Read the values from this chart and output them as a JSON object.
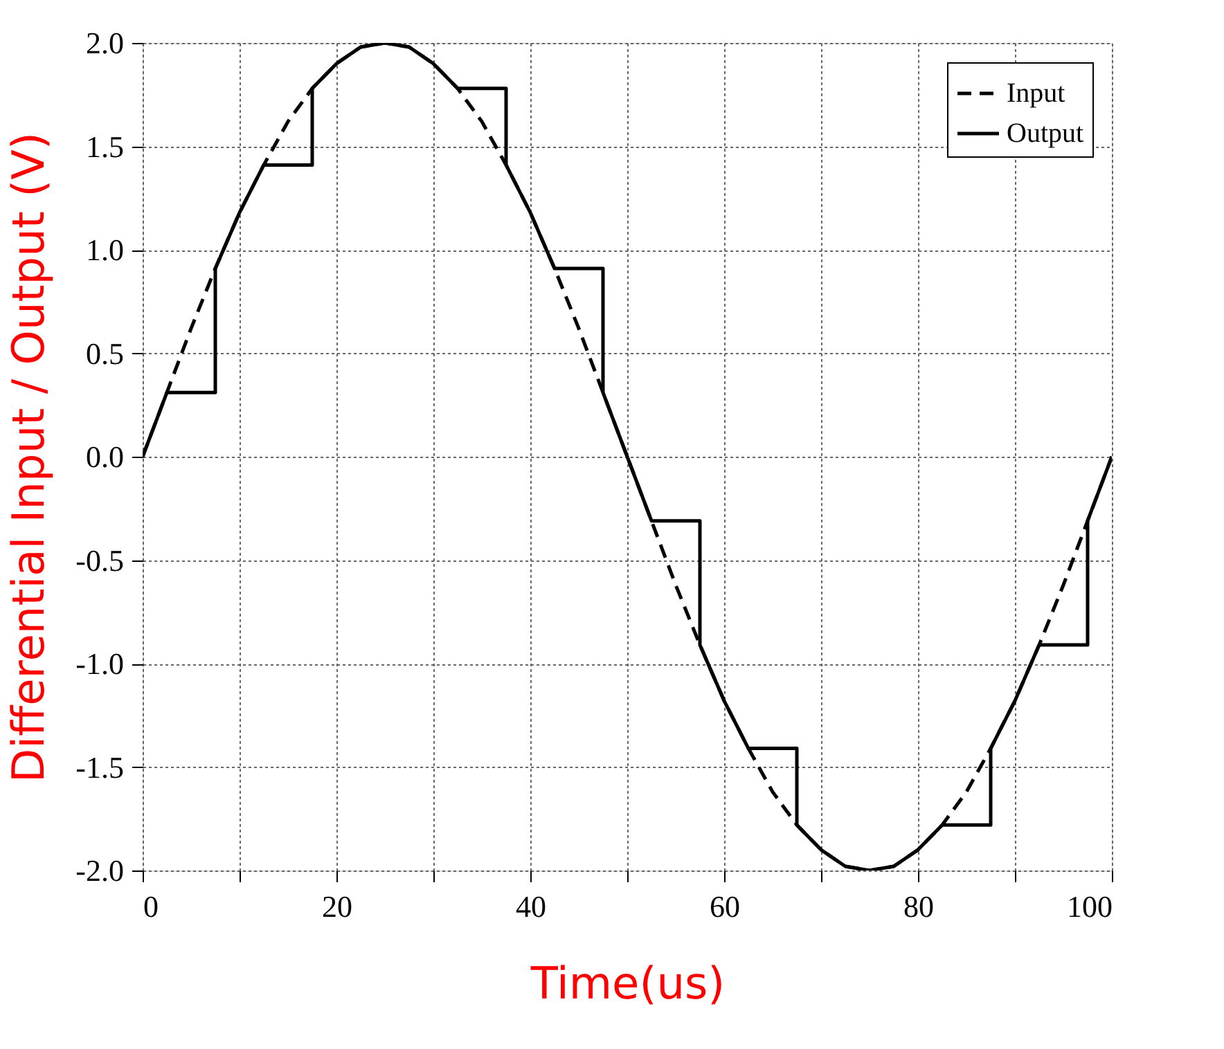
{
  "chart_data": {
    "type": "line",
    "xlabel": "Time(us)",
    "ylabel": "Differential Input / Output (V)",
    "xlim": [
      0,
      100
    ],
    "ylim": [
      -2.0,
      2.0
    ],
    "xticks": [
      0,
      {
        "value": 10,
        "label": null
      },
      20,
      {
        "value": 30,
        "label": null
      },
      40,
      {
        "value": 50,
        "label": null
      },
      60,
      {
        "value": 70,
        "label": null
      },
      80,
      {
        "value": 90,
        "label": null
      },
      100
    ],
    "yticks": [
      {
        "value": -2,
        "label": "-2.0"
      },
      -1.5,
      {
        "value": -1,
        "label": "-1.0"
      },
      -0.5,
      {
        "value": 0,
        "label": "0.0"
      },
      0.5,
      {
        "value": 1,
        "label": "1.0"
      },
      1.5,
      {
        "value": 2,
        "label": "2.0"
      }
    ],
    "grid": true,
    "legend": "top right",
    "series": [
      {
        "name": "Input",
        "color": "#000000",
        "line_style": "dashed",
        "x": [
          0,
          2.5,
          5,
          7.5,
          10,
          12.5,
          15,
          17.5,
          20,
          22.5,
          25,
          27.5,
          30,
          32.5,
          35,
          37.5,
          40,
          42.5,
          45,
          47.5,
          50,
          52.5,
          55,
          57.5,
          60,
          62.5,
          65,
          67.5,
          70,
          72.5,
          75,
          77.5,
          80,
          82.5,
          85,
          87.5,
          90,
          92.5,
          95,
          97.5,
          100
        ],
        "values": [
          0,
          0.31,
          0.62,
          0.91,
          1.18,
          1.41,
          1.62,
          1.78,
          1.9,
          1.98,
          2.0,
          1.98,
          1.9,
          1.78,
          1.62,
          1.41,
          1.18,
          0.91,
          0.62,
          0.31,
          0,
          -0.31,
          -0.62,
          -0.91,
          -1.18,
          -1.41,
          -1.62,
          -1.78,
          -1.9,
          -1.98,
          -2.0,
          -1.98,
          -1.9,
          -1.78,
          -1.62,
          -1.41,
          -1.18,
          -0.91,
          -0.62,
          -0.31,
          0
        ]
      },
      {
        "name": "Output",
        "color": "#000000",
        "line_style": "solid",
        "x": [
          0,
          2.5,
          7.5,
          7.5,
          10,
          12.5,
          17.5,
          17.5,
          20,
          22.5,
          25,
          27.5,
          30,
          32.5,
          37.5,
          37.5,
          40,
          42.5,
          47.5,
          47.5,
          50,
          52.5,
          57.5,
          57.5,
          60,
          62.5,
          67.5,
          67.5,
          70,
          72.5,
          75,
          77.5,
          80,
          82.5,
          87.5,
          87.5,
          90,
          92.5,
          97.5,
          97.5,
          100
        ],
        "values": [
          0,
          0.31,
          0.31,
          0.91,
          1.18,
          1.41,
          1.41,
          1.78,
          1.9,
          1.98,
          2.0,
          1.98,
          1.9,
          1.78,
          1.78,
          1.41,
          1.18,
          0.91,
          0.91,
          0.31,
          0,
          -0.31,
          -0.31,
          -0.91,
          -1.18,
          -1.41,
          -1.41,
          -1.78,
          -1.9,
          -1.98,
          -2.0,
          -1.98,
          -1.9,
          -1.78,
          -1.78,
          -1.41,
          -1.18,
          -0.91,
          -0.91,
          -0.31,
          0
        ]
      }
    ]
  }
}
